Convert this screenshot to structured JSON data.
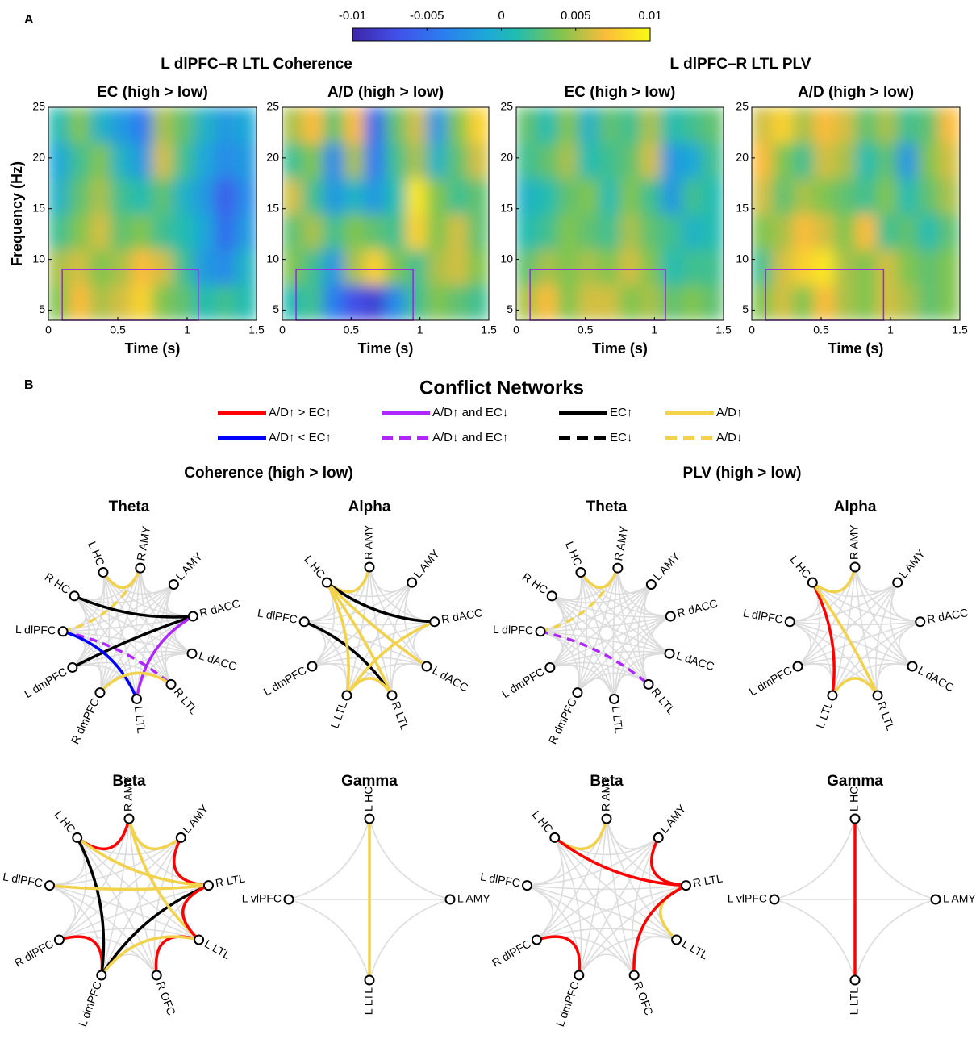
{
  "panel_a": {
    "label": "A",
    "colorbar": {
      "lim": [
        -0.01,
        0.01
      ],
      "ticks": [
        -0.01,
        -0.005,
        0,
        0.005,
        0.01
      ]
    },
    "groups": [
      {
        "title": "L dlPFC–R LTL Coherence"
      },
      {
        "title": "L dlPFC–R LTL PLV"
      }
    ],
    "chart_data": [
      {
        "type": "heatmap",
        "title": "EC (high > low)",
        "xlabel": "Time (s)",
        "ylabel": "Frequency (Hz)",
        "xlim": [
          0,
          1.5
        ],
        "xticks": [
          0,
          0.5,
          1,
          1.5
        ],
        "ylim": [
          4,
          25
        ],
        "yticks": [
          5,
          10,
          15,
          20,
          25
        ],
        "roi": {
          "x": [
            0.1,
            1.08
          ],
          "y": [
            4,
            9
          ]
        },
        "roi_color": "#a020f0",
        "z": [
          [
            0.004,
            0.007,
            0.005,
            0.006,
            0.008,
            0.004,
            0.003,
            0.001,
            0.002,
            0.001
          ],
          [
            0.005,
            0.006,
            0.004,
            0.005,
            0.007,
            0.006,
            0.002,
            -0.002,
            -0.003,
            0
          ],
          [
            0.002,
            0.004,
            0.006,
            0.003,
            0.004,
            0.002,
            0.001,
            -0.001,
            -0.005,
            -0.002
          ],
          [
            0,
            0.003,
            0.005,
            0.002,
            0.001,
            0.003,
            0,
            -0.002,
            -0.006,
            -0.003
          ],
          [
            -0.001,
            0.002,
            0.004,
            0,
            -0.002,
            0.006,
            0.002,
            -0.001,
            -0.003,
            -0.002
          ],
          [
            0.001,
            0.004,
            0,
            -0.002,
            -0.004,
            0.005,
            0.003,
            0,
            -0.002,
            -0.001
          ]
        ]
      },
      {
        "type": "heatmap",
        "title": "A/D (high > low)",
        "xlabel": "Time (s)",
        "xlim": [
          0,
          1.5
        ],
        "xticks": [
          0,
          0.5,
          1,
          1.5
        ],
        "ylim": [
          4,
          25
        ],
        "yticks": [
          5,
          10,
          15,
          20,
          25
        ],
        "roi": {
          "x": [
            0.1,
            0.95
          ],
          "y": [
            4,
            9
          ]
        },
        "roi_color": "#a020f0",
        "z": [
          [
            0.001,
            0.002,
            -0.004,
            -0.007,
            -0.008,
            -0.003,
            0.002,
            0.004,
            0.003,
            0.002
          ],
          [
            0.004,
            0.002,
            -0.002,
            0.005,
            0.008,
            0.004,
            0.002,
            0.005,
            0.006,
            0.004
          ],
          [
            0.003,
            0.005,
            0.002,
            0.004,
            0.003,
            0.002,
            0.008,
            0.004,
            0.006,
            0.003
          ],
          [
            0.006,
            0.002,
            -0.002,
            0,
            -0.002,
            0.001,
            0.009,
            0.004,
            0.002,
            0.003
          ],
          [
            0.002,
            0.004,
            -0.003,
            0.005,
            -0.004,
            0.002,
            0.005,
            0,
            0.003,
            0.006
          ],
          [
            0.005,
            0.007,
            0.003,
            0.007,
            -0.005,
            0.003,
            0.006,
            -0.002,
            0.004,
            0.008
          ]
        ]
      },
      {
        "type": "heatmap",
        "title": "EC (high > low)",
        "xlabel": "Time (s)",
        "xlim": [
          0,
          1.5
        ],
        "xticks": [
          0,
          0.5,
          1,
          1.5
        ],
        "ylim": [
          4,
          25
        ],
        "yticks": [
          5,
          10,
          15,
          20,
          25
        ],
        "roi": {
          "x": [
            0.1,
            1.08
          ],
          "y": [
            4,
            9
          ]
        },
        "roi_color": "#a020f0",
        "z": [
          [
            0.005,
            0.007,
            0.004,
            0.006,
            0.006,
            0.004,
            0.005,
            0.003,
            0.004,
            0.003
          ],
          [
            0.003,
            0.005,
            0.004,
            0.005,
            0.004,
            0.006,
            0.004,
            0.001,
            0.002,
            0.002
          ],
          [
            0.001,
            0.002,
            0.004,
            0.003,
            0.002,
            0.005,
            0.003,
            0.002,
            0,
            0.001
          ],
          [
            0,
            0.001,
            0.003,
            0.004,
            0.001,
            0.004,
            0.002,
            -0.002,
            0.002,
            0.001
          ],
          [
            0.002,
            0.003,
            0.005,
            0.001,
            0.002,
            0.003,
            0.006,
            -0.002,
            -0.001,
            0.002
          ],
          [
            0.003,
            0.001,
            0.004,
            0,
            0.003,
            0.002,
            0.005,
            0.001,
            0.002,
            0.003
          ]
        ]
      },
      {
        "type": "heatmap",
        "title": "A/D (high > low)",
        "xlabel": "Time (s)",
        "xlim": [
          0,
          1.5
        ],
        "xticks": [
          0,
          0.5,
          1,
          1.5
        ],
        "ylim": [
          4,
          25
        ],
        "yticks": [
          5,
          10,
          15,
          20,
          25
        ],
        "roi": {
          "x": [
            0.1,
            0.95
          ],
          "y": [
            4,
            9
          ]
        },
        "roi_color": "#a020f0",
        "z": [
          [
            0.004,
            0.006,
            0.004,
            0.007,
            0.005,
            0.004,
            0.006,
            0.005,
            0.003,
            0.004
          ],
          [
            0.002,
            0.006,
            0.008,
            0.009,
            0.005,
            0.004,
            0.006,
            0.004,
            0.003,
            0.004
          ],
          [
            0.004,
            0.005,
            0.007,
            0.006,
            0.004,
            0.007,
            0.002,
            0.003,
            0.001,
            0.003
          ],
          [
            0.006,
            0.003,
            0.005,
            0.004,
            0.003,
            0.002,
            0.004,
            0.001,
            0.003,
            0.005
          ],
          [
            0.007,
            0.004,
            0.002,
            0.006,
            0.005,
            0.001,
            0.003,
            -0.002,
            0.004,
            0.006
          ],
          [
            0.006,
            0.008,
            0.005,
            0.007,
            0.006,
            0.003,
            0.005,
            0.002,
            0.003,
            0.007
          ]
        ]
      }
    ]
  },
  "panel_b": {
    "label": "B",
    "title": "Conflict Networks",
    "legend": [
      {
        "label": "A/D↑ > EC↑",
        "color": "#ff0000",
        "dash": false
      },
      {
        "label": "A/D↑ < EC↑",
        "color": "#0000ff",
        "dash": false
      },
      {
        "label": "A/D↑ and EC↓",
        "color": "#b026ff",
        "dash": false
      },
      {
        "label": "A/D↓ and EC↑",
        "color": "#b026ff",
        "dash": true
      },
      {
        "label": "EC↑",
        "color": "#000000",
        "dash": false
      },
      {
        "label": "EC↓",
        "color": "#000000",
        "dash": true
      },
      {
        "label": "A/D↑",
        "color": "#f2d24b",
        "dash": false
      },
      {
        "label": "A/D↓",
        "color": "#f2d24b",
        "dash": true
      }
    ],
    "sections": [
      {
        "title": "Coherence (high > low)",
        "networks": [
          {
            "title": "Theta",
            "nodes": [
              "L HC",
              "R AMY",
              "L AMY",
              "R dACC",
              "L dACC",
              "R LTL",
              "L LTL",
              "R dmPFC",
              "L dmPFC",
              "L dlPFC",
              "R HC"
            ],
            "edges": [
              {
                "from": 0,
                "to": 1,
                "kind": 6
              },
              {
                "from": 9,
                "to": 1,
                "kind": 7
              },
              {
                "from": 10,
                "to": 3,
                "kind": 4
              },
              {
                "from": 9,
                "to": 5,
                "kind": 3
              },
              {
                "from": 8,
                "to": 3,
                "kind": 4
              },
              {
                "from": 9,
                "to": 6,
                "kind": 1
              },
              {
                "from": 3,
                "to": 6,
                "kind": 2
              },
              {
                "from": 7,
                "to": 5,
                "kind": 6
              }
            ]
          },
          {
            "title": "Alpha",
            "nodes": [
              "L HC",
              "R AMY",
              "L AMY",
              "R dACC",
              "L dACC",
              "R LTL",
              "L LTL",
              "L dmPFC",
              "L dlPFC"
            ],
            "edges": [
              {
                "from": 0,
                "to": 1,
                "kind": 6
              },
              {
                "from": 0,
                "to": 3,
                "kind": 4
              },
              {
                "from": 8,
                "to": 5,
                "kind": 4
              },
              {
                "from": 0,
                "to": 4,
                "kind": 6
              },
              {
                "from": 0,
                "to": 5,
                "kind": 6
              },
              {
                "from": 0,
                "to": 6,
                "kind": 6
              },
              {
                "from": 6,
                "to": 3,
                "kind": 6
              },
              {
                "from": 6,
                "to": 5,
                "kind": 6
              }
            ]
          },
          {
            "title": "Beta",
            "nodes": [
              "L HC",
              "R AMY",
              "L AMY",
              "R LTL",
              "L LTL",
              "R OFC",
              "L dmPFC",
              "R dlPFC",
              "L dlPFC"
            ],
            "edges": [
              {
                "from": 0,
                "to": 1,
                "kind": 0
              },
              {
                "from": 1,
                "to": 2,
                "kind": 6
              },
              {
                "from": 2,
                "to": 3,
                "kind": 0
              },
              {
                "from": 4,
                "to": 5,
                "kind": 0
              },
              {
                "from": 7,
                "to": 6,
                "kind": 0
              },
              {
                "from": 0,
                "to": 6,
                "kind": 4
              },
              {
                "from": 3,
                "to": 6,
                "kind": 4
              },
              {
                "from": 0,
                "to": 3,
                "kind": 6
              },
              {
                "from": 8,
                "to": 3,
                "kind": 6
              },
              {
                "from": 1,
                "to": 4,
                "kind": 6
              },
              {
                "from": 6,
                "to": 4,
                "kind": 6
              },
              {
                "from": 3,
                "to": 4,
                "kind": 0
              }
            ]
          },
          {
            "title": "Gamma",
            "nodes": [
              "L HC",
              "L AMY",
              "L LTL",
              "L vlPFC"
            ],
            "edges": [
              {
                "from": 0,
                "to": 2,
                "kind": 6
              }
            ]
          }
        ]
      },
      {
        "title": "PLV (high > low)",
        "networks": [
          {
            "title": "Theta",
            "nodes": [
              "L HC",
              "R AMY",
              "L AMY",
              "R dACC",
              "L dACC",
              "R LTL",
              "L LTL",
              "R dmPFC",
              "L dmPFC",
              "L dlPFC",
              "R HC"
            ],
            "edges": [
              {
                "from": 0,
                "to": 1,
                "kind": 6
              },
              {
                "from": 9,
                "to": 1,
                "kind": 7
              },
              {
                "from": 9,
                "to": 5,
                "kind": 3
              }
            ]
          },
          {
            "title": "Alpha",
            "nodes": [
              "L HC",
              "R AMY",
              "L AMY",
              "R dACC",
              "L dACC",
              "R LTL",
              "L LTL",
              "L dmPFC",
              "L dlPFC"
            ],
            "edges": [
              {
                "from": 0,
                "to": 1,
                "kind": 6
              },
              {
                "from": 0,
                "to": 6,
                "kind": 0
              },
              {
                "from": 0,
                "to": 5,
                "kind": 6
              },
              {
                "from": 6,
                "to": 5,
                "kind": 6
              }
            ]
          },
          {
            "title": "Beta",
            "nodes": [
              "L HC",
              "R AMY",
              "L AMY",
              "R LTL",
              "L LTL",
              "R OFC",
              "L dmPFC",
              "R dlPFC",
              "L dlPFC"
            ],
            "edges": [
              {
                "from": 0,
                "to": 1,
                "kind": 6
              },
              {
                "from": 0,
                "to": 3,
                "kind": 0
              },
              {
                "from": 2,
                "to": 3,
                "kind": 0
              },
              {
                "from": 3,
                "to": 4,
                "kind": 6
              },
              {
                "from": 3,
                "to": 5,
                "kind": 0
              },
              {
                "from": 7,
                "to": 6,
                "kind": 0
              }
            ]
          },
          {
            "title": "Gamma",
            "nodes": [
              "L HC",
              "L AMY",
              "L LTL",
              "L vlPFC"
            ],
            "edges": [
              {
                "from": 0,
                "to": 2,
                "kind": 0
              }
            ]
          }
        ]
      }
    ]
  }
}
